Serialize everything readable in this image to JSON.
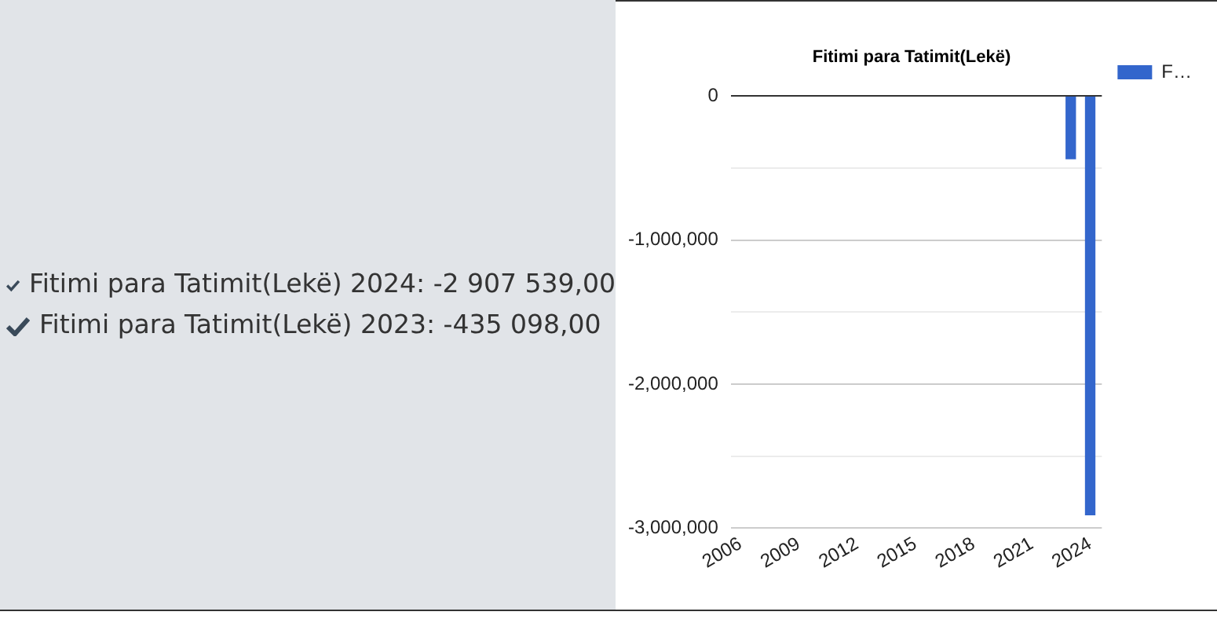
{
  "chart_data": [
    {
      "type": "other",
      "annotations": [
        "Fitimi para Tatimit(Lekë) 2024: -2 907 539,00",
        "Fitimi para Tatimit(Lekë) 2023: -435 098,00"
      ]
    },
    {
      "type": "bar",
      "title": "Fitimi para Tatimit(Lekë)",
      "x": [
        2023,
        2024
      ],
      "series": [
        {
          "name": "F…",
          "color": "#3366cc",
          "values": [
            -435098,
            -2907539
          ]
        }
      ],
      "xlim": [
        2005.5,
        2024.6
      ],
      "xticks": [
        2006,
        2009,
        2012,
        2015,
        2018,
        2021,
        2024
      ],
      "ylim": [
        -3000000,
        0
      ],
      "yticks": [
        {
          "value": 0,
          "label": "0"
        },
        {
          "value": -500000,
          "label": null
        },
        {
          "value": -1000000,
          "label": "-1,000,000"
        },
        {
          "value": -1500000,
          "label": null
        },
        {
          "value": -2000000,
          "label": "-2,000,000"
        },
        {
          "value": -2500000,
          "label": null
        },
        {
          "value": -3000000,
          "label": "-3,000,000"
        }
      ],
      "grid": true,
      "legend": "top right"
    }
  ]
}
